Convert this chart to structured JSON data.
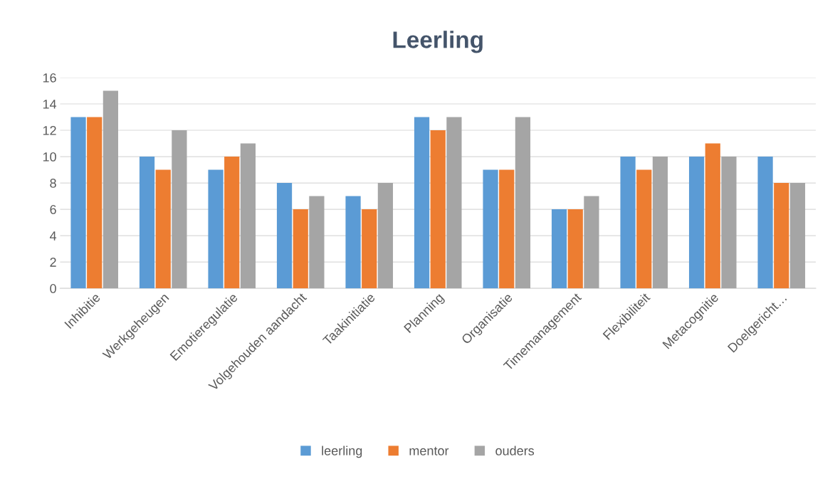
{
  "chart_data": {
    "type": "bar",
    "title": "Leerling",
    "categories": [
      "Inhibitie",
      "Werkgeheugen",
      "Emotieregulatie",
      "Volgehouden aandacht",
      "Taakinitiatie",
      "Planning",
      "Organisatie",
      "Timemanagement",
      "Flexibiliteit",
      "Metacognitie",
      "Doelgericht…"
    ],
    "series": [
      {
        "name": "leerling",
        "color": "#5b9bd5",
        "values": [
          13,
          10,
          9,
          8,
          7,
          13,
          9,
          6,
          10,
          10,
          10
        ]
      },
      {
        "name": "mentor",
        "color": "#ed7d31",
        "values": [
          13,
          9,
          10,
          6,
          6,
          12,
          9,
          6,
          9,
          11,
          8
        ]
      },
      {
        "name": "ouders",
        "color": "#a5a5a5",
        "values": [
          15,
          12,
          11,
          7,
          8,
          13,
          13,
          7,
          10,
          10,
          8
        ]
      }
    ],
    "ylim": [
      0,
      16
    ],
    "yticks": [
      0,
      2,
      4,
      6,
      8,
      10,
      12,
      14,
      16
    ],
    "grid": "y",
    "legend": "bottom"
  }
}
